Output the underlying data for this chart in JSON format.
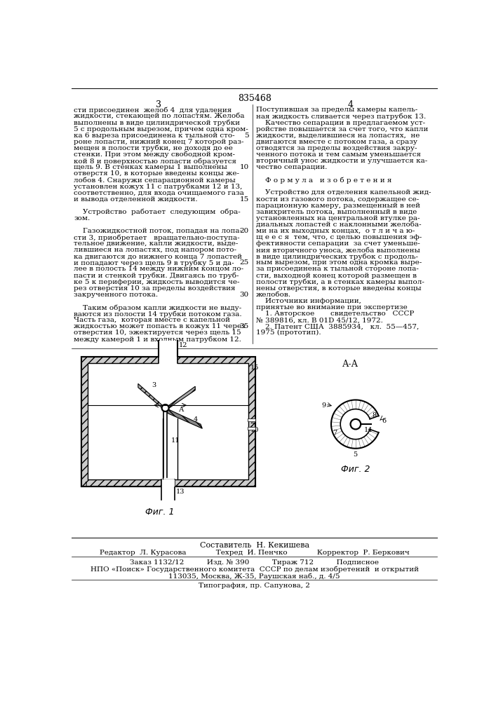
{
  "patent_number": "835468",
  "page_left": "3",
  "page_right": "4",
  "background_color": "#ffffff",
  "text_color": "#000000",
  "col_left_text": [
    "сти присоединен  желоб 4  для удаления",
    "жидкости, стекающей по лопастям. Желоба",
    "выполнены в виде цилиндрической трубки",
    "5 с продольным вырезом, причем одна кром-",
    "ка 6 выреза присоединена к тыльной сто-",
    "роне лопасти, нижний конец 7 которой раз-",
    "мещен в полости трубки, не доходя до ее",
    "стенки. При этом между свободной кром-",
    "кой 8 и поверхностью лопасти образуется",
    "щель 9. В стенках камеры 1 выполнены",
    "отверстя 10, в которые введены концы же-",
    "лобов 4. Снаружи сепарационной камеры",
    "установлен кожух 11 с патрубками 12 и 13,",
    "соответственно, для входа очищаемого газа",
    "и вывода отделенной жидкости.",
    "",
    "    Устройство  работает  следующим  обра-",
    "зом.",
    "",
    "    Газожидкостной поток, попадая на лопа-",
    "сти 3, приобретает   вращательно-поступа-",
    "тельное движение, капли жидкости, выде-",
    "лившиеся на лопастях, под напором пото-",
    "ка двигаются до нижнего конца 7 лопастей",
    "и попадают через щель 9 в трубку 5 и да-",
    "лее в полость 14 между нижним концом ло-",
    "пасти и стенкой трубки. Двигаясь по труб-",
    "ке 5 к периферии, жидкость выводится че-",
    "рез отверстия 10 за пределы воздействия",
    "закрученного потока.",
    "",
    "    Таким образом капли жидкости не выду-",
    "ваются из полости 14 трубки потоком газа.",
    "Часть газа,  которая вместе с капельной",
    "жидкостью может попасть в кожух 11 через",
    "отверстия 10, эжектируется через щель 15",
    "между камерой 1 и входным патрубком 12."
  ],
  "line_numbers": [
    [
      4,
      "5"
    ],
    [
      9,
      "10"
    ],
    [
      14,
      "15"
    ],
    [
      19,
      "20"
    ],
    [
      24,
      "25"
    ],
    [
      29,
      "30"
    ],
    [
      34,
      "35"
    ]
  ],
  "col_right_text": [
    "Поступившая за пределы камеры капель-",
    "ная жидкость сливается через патрубок 13.",
    "    Качество сепарации в предлагаемом уст-",
    "ройстве повышается за счет того, что капли",
    "жидкости, выделившиеся на лопастях,  не",
    "двигаются вместе с потоком газа, а сразу",
    "отводятся за пределы воздействия закру-",
    "ченного потока и тем самым уменьшается",
    "вторичный унос жидкости и улучшается ка-",
    "чество сепарации.",
    "",
    "    Ф о р м у л а   и з о б р е т е н и я",
    "",
    "    Устройство для отделения капельной жид-",
    "кости из газового потока, содержащее се-",
    "парационную камеру, размещенный в ней",
    "завихритель потока, выполненный в виде",
    "установленных на центральной втулке ра-",
    "диальных лопастей с наклонными желоба-",
    "ми на их выходных концах,  о т л и ч а ю-",
    "щ е е с я  тем, что, с целью повышения эф-",
    "фективности сепарации  за счет уменьше-",
    "ния вторичного уноса, желоба выполнены",
    "в виде цилиндрических трубок с продоль-",
    "ным вырезом, при этом одна кромка выре-",
    "за присоединена к тыльной стороне лопа-",
    "сти, выходной конец которой размещен в",
    "полости трубки, а в стенках камеры выпол-",
    "нены отверстия, в которые введены концы",
    "желобов.",
    "    Источники информации,",
    "принятые во внимание при экспертизе",
    "    1. Авторское       свидетельство   СССР",
    "№ 389816, кл. В 01D 45/12, 1972.",
    "    2. Патент США  3885934,   кл.  55—457,",
    "1975 (прототип)."
  ],
  "footer_text": [
    "Составитель  Н. Кекишева",
    "Редактор  Л. Курасова             Техред  И. Пенчко             Корректор  Р. Беркович",
    "Заказ 1132/12          Изд. № 390          Тираж 712          Подписное",
    "НПО «Поиск» Государственного комитета  СССР по делам изобретений  и открытий",
    "113035, Москва, Ж-35, Раушская наб., д. 4/5",
    "Типография, пр. Сапунова, 2"
  ]
}
